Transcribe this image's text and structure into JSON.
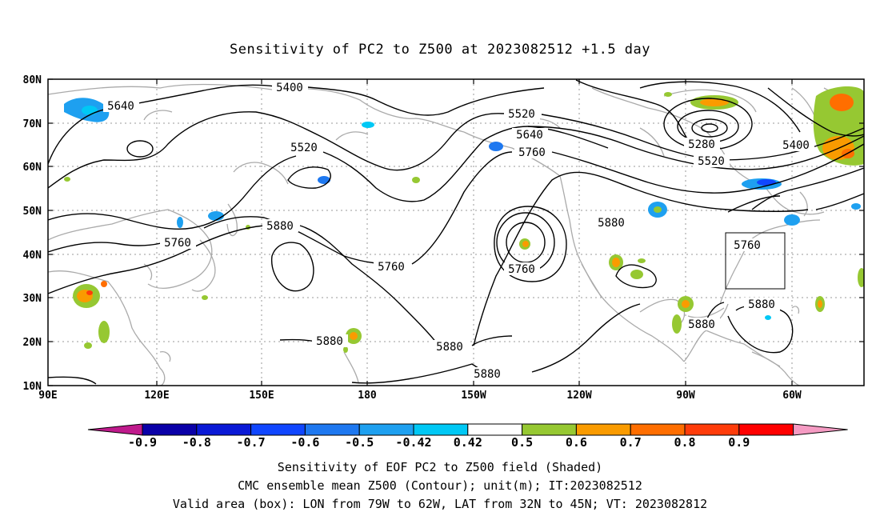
{
  "title": "Sensitivity of PC2 to Z500 at 2023082512 +1.5 day",
  "lon_labels": [
    "90E",
    "120E",
    "150E",
    "180",
    "150W",
    "120W",
    "90W",
    "60W"
  ],
  "lat_labels": [
    "80N",
    "70N",
    "60N",
    "50N",
    "40N",
    "30N",
    "20N",
    "10N"
  ],
  "contour_labels": {
    "c5400a": "5400",
    "c5640": "5640",
    "c5520a": "5520",
    "c5520b": "5520",
    "c5640b": "5640",
    "c5760a": "5760",
    "c5280": "5280",
    "c5400b": "5400",
    "c5520c": "5520",
    "c5760b": "5760",
    "c5880a": "5880",
    "c5760c": "5760",
    "c5760d": "5760",
    "c5880b": "5880",
    "c5760e": "5760",
    "c5880c": "5880",
    "c5880d": "5880",
    "c5880e": "5880",
    "c5880f": "5880",
    "c5880g": "5880"
  },
  "colorbar": {
    "tick_labels": [
      "-0.9",
      "-0.8",
      "-0.7",
      "-0.6",
      "-0.5",
      "-0.42",
      "0.42",
      "0.5",
      "0.6",
      "0.7",
      "0.8",
      "0.9"
    ],
    "colors": [
      "#bf1a8c",
      "#0a00a8",
      "#0a19d6",
      "#1046ff",
      "#1e78f0",
      "#1ea0f0",
      "#00c8f5",
      "#ffffff",
      "#96c832",
      "#fa9b00",
      "#ff6e00",
      "#ff3c0a",
      "#ff0000",
      "#f59bc3"
    ]
  },
  "caption": {
    "line1": "Sensitivity of EOF PC2 to Z500 field (Shaded)",
    "line2": "CMC ensemble mean Z500 (Contour); unit(m); IT:2023082512",
    "line3": "Valid area (box): LON from 79W to 62W, LAT from 32N to 45N; VT: 2023082812"
  }
}
